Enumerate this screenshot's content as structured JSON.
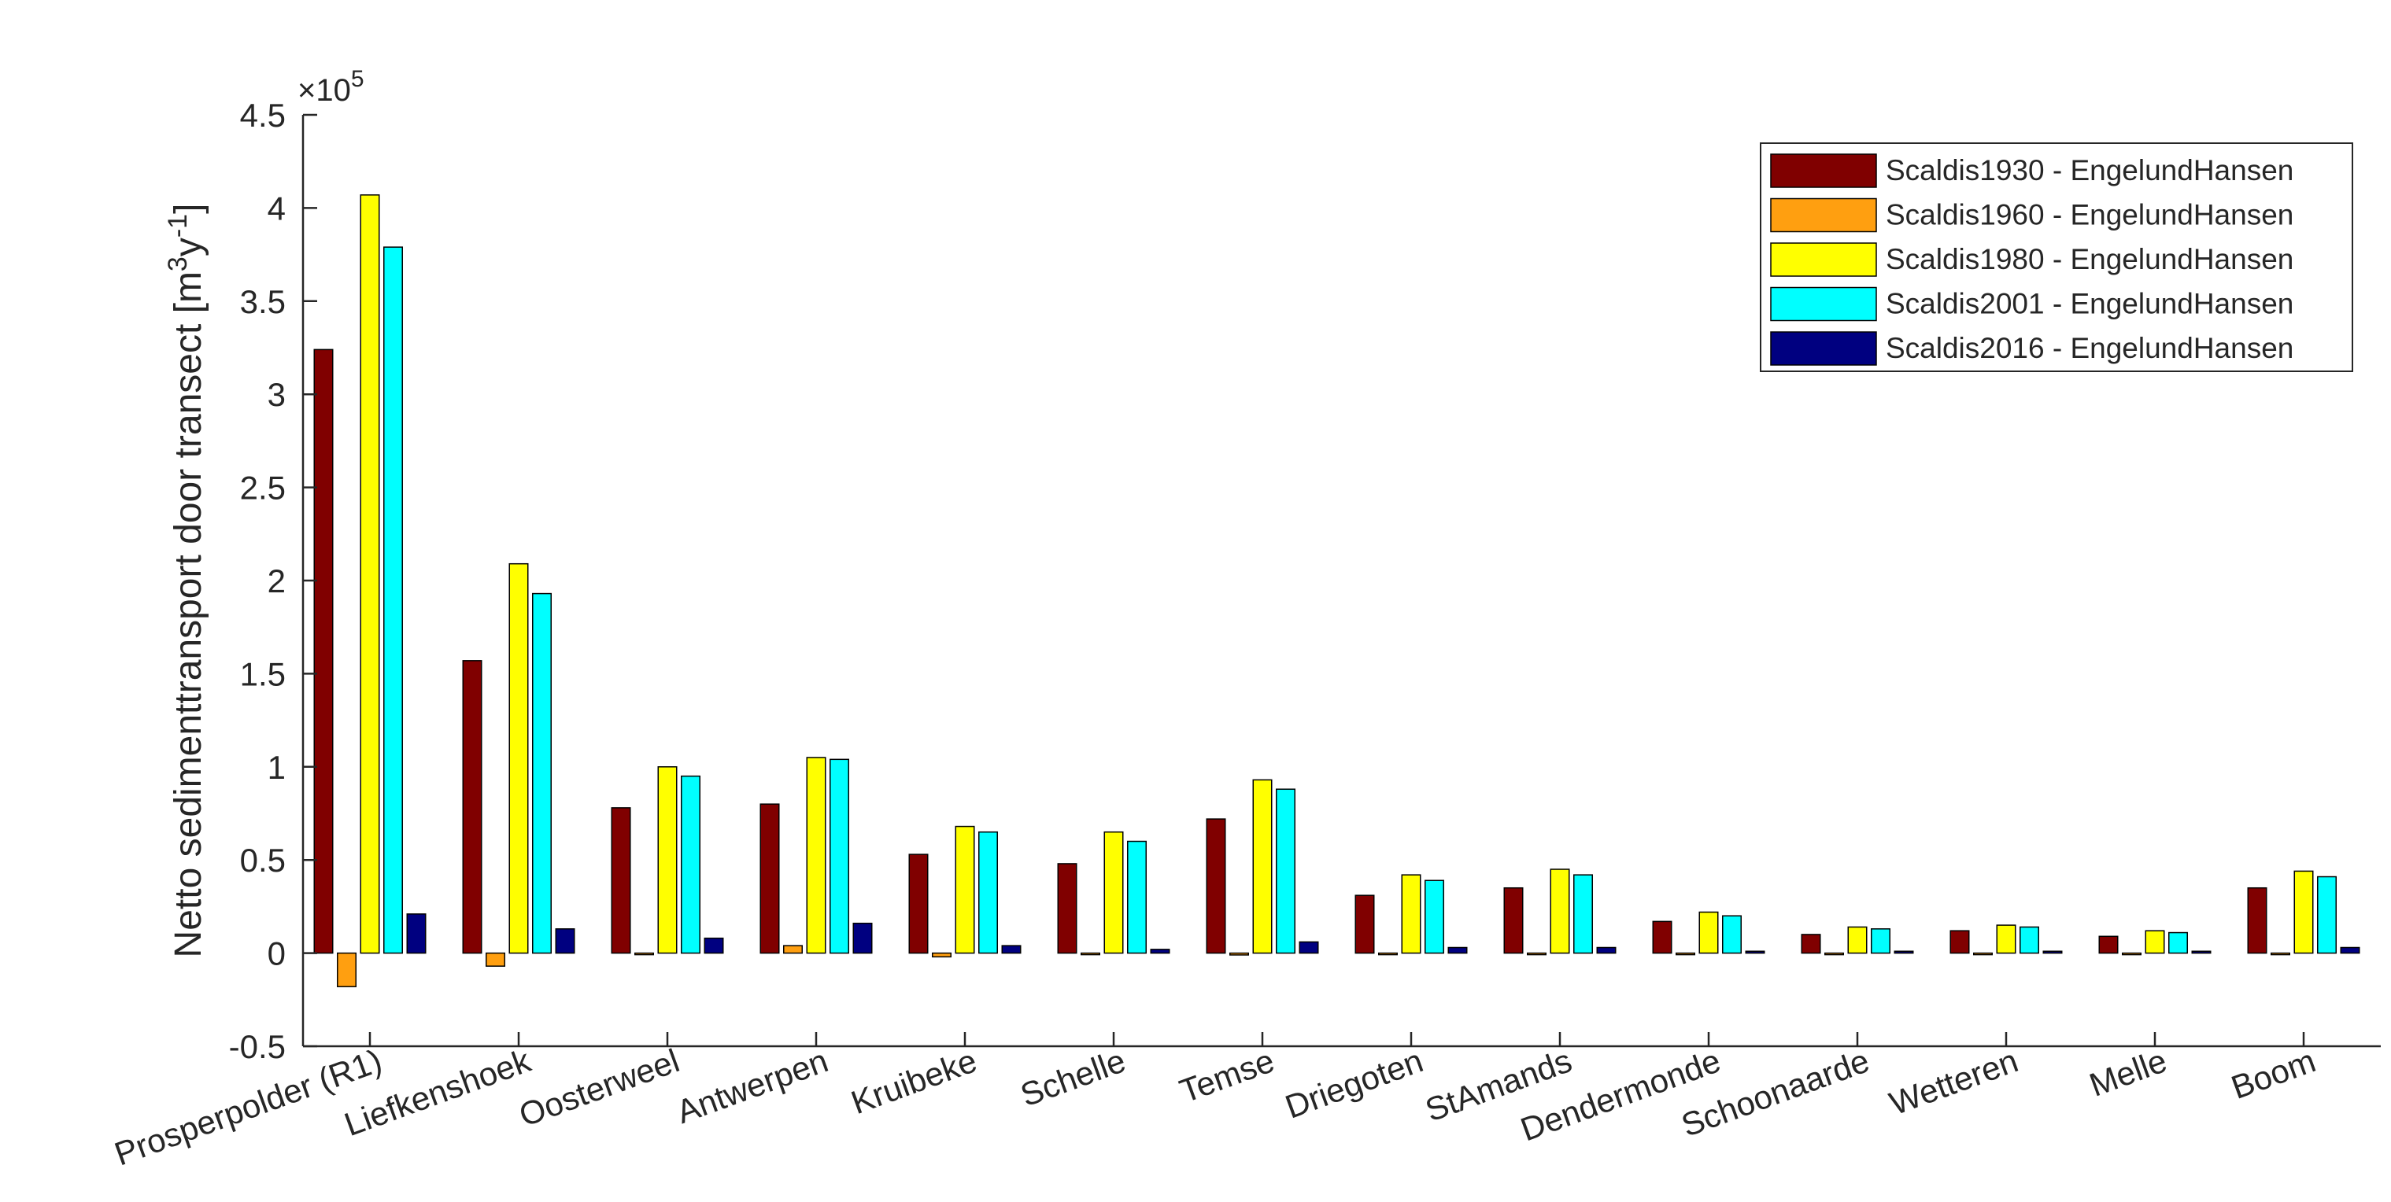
{
  "chart_data": {
    "type": "bar",
    "ylabel": "Netto sedimenttransport door transect [m³y⁻¹]",
    "ylabel_main": "Netto sedimenttransport door transect [m",
    "ylabel_sup1": "3",
    "ylabel_mid": "y",
    "ylabel_sup2": "-1",
    "ylabel_end": "]",
    "y_exponent_base": "×10",
    "y_exponent_power": "5",
    "ylim": [
      -0.5,
      4.5
    ],
    "yticks": [
      "-0.5",
      "0",
      "0.5",
      "1",
      "1.5",
      "2",
      "2.5",
      "3",
      "3.5",
      "4",
      "4.5"
    ],
    "grid": false,
    "legend_position": "top-right",
    "categories": [
      "Prosperpolder (R1)",
      "Liefkenshoek",
      "Oosterweel",
      "Antwerpen",
      "Kruibeke",
      "Schelle",
      "Temse",
      "Driegoten",
      "StAmands",
      "Dendermonde",
      "Schoonaarde",
      "Wetteren",
      "Melle",
      "Boom"
    ],
    "series": [
      {
        "name": "Scaldis1930 - EngelundHansen",
        "color": "#800000",
        "values": [
          3.24,
          1.57,
          0.78,
          0.8,
          0.53,
          0.48,
          0.72,
          0.31,
          0.35,
          0.17,
          0.1,
          0.12,
          0.09,
          0.35
        ]
      },
      {
        "name": "Scaldis1960 - EngelundHansen",
        "color": "#FF9F10",
        "values": [
          -0.18,
          -0.07,
          0.0,
          0.04,
          -0.02,
          0.0,
          -0.01,
          0.0,
          0.0,
          0.0,
          0.0,
          0.0,
          0.0,
          0.0
        ]
      },
      {
        "name": "Scaldis1980 - EngelundHansen",
        "color": "#FFFF00",
        "values": [
          4.07,
          2.09,
          1.0,
          1.05,
          0.68,
          0.65,
          0.93,
          0.42,
          0.45,
          0.22,
          0.14,
          0.15,
          0.12,
          0.44
        ]
      },
      {
        "name": "Scaldis2001 - EngelundHansen",
        "color": "#00FFFF",
        "values": [
          3.79,
          1.93,
          0.95,
          1.04,
          0.65,
          0.6,
          0.88,
          0.39,
          0.42,
          0.2,
          0.13,
          0.14,
          0.11,
          0.41
        ]
      },
      {
        "name": "Scaldis2016 - EngelundHansen",
        "color": "#000080",
        "values": [
          0.21,
          0.13,
          0.08,
          0.16,
          0.04,
          0.02,
          0.06,
          0.03,
          0.03,
          0.01,
          0.01,
          0.01,
          0.01,
          0.03
        ]
      }
    ]
  }
}
